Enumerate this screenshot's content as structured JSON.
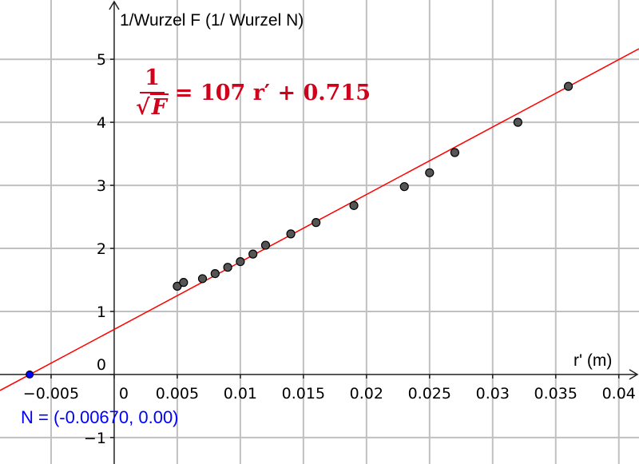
{
  "chart_data": {
    "type": "scatter",
    "title": "",
    "xlabel": "r' (m)",
    "ylabel": "1/Wurzel F (1/ Wurzel N)",
    "xlim": [
      -0.00905,
      0.0416
    ],
    "ylim": [
      -1.42,
      5.94
    ],
    "grid": true,
    "x_ticks": [
      -0.005,
      0,
      0.005,
      0.01,
      0.015,
      0.02,
      0.025,
      0.03,
      0.035,
      0.04
    ],
    "x_tick_labels": [
      "−0.005",
      "0",
      "0.005",
      "0.01",
      "0.015",
      "0.02",
      "0.025",
      "0.03",
      "0.035",
      "0.04"
    ],
    "y_ticks": [
      -1,
      0,
      1,
      2,
      3,
      4,
      5
    ],
    "y_tick_labels": [
      "−1",
      "0",
      "1",
      "2",
      "3",
      "4",
      "5"
    ],
    "points": {
      "x": [
        0.005,
        0.0055,
        0.007,
        0.008,
        0.009,
        0.01,
        0.011,
        0.012,
        0.014,
        0.016,
        0.019,
        0.023,
        0.025,
        0.027,
        0.032,
        0.036
      ],
      "y": [
        1.4,
        1.46,
        1.52,
        1.6,
        1.7,
        1.79,
        1.91,
        2.05,
        2.23,
        2.41,
        2.68,
        2.98,
        3.2,
        3.52,
        4.0,
        4.57
      ],
      "color": "#555555"
    },
    "fit_line": {
      "slope": 107,
      "intercept": 0.715,
      "color": "#ff0000"
    },
    "equation": {
      "lhs_num": "1",
      "lhs_den": "F",
      "rhs": "= 107 r′ + 0.715"
    },
    "root_point": {
      "x": -0.0067,
      "y": 0,
      "label": "N = (-0.00670, 0.00)",
      "color": "#0000ff"
    }
  }
}
